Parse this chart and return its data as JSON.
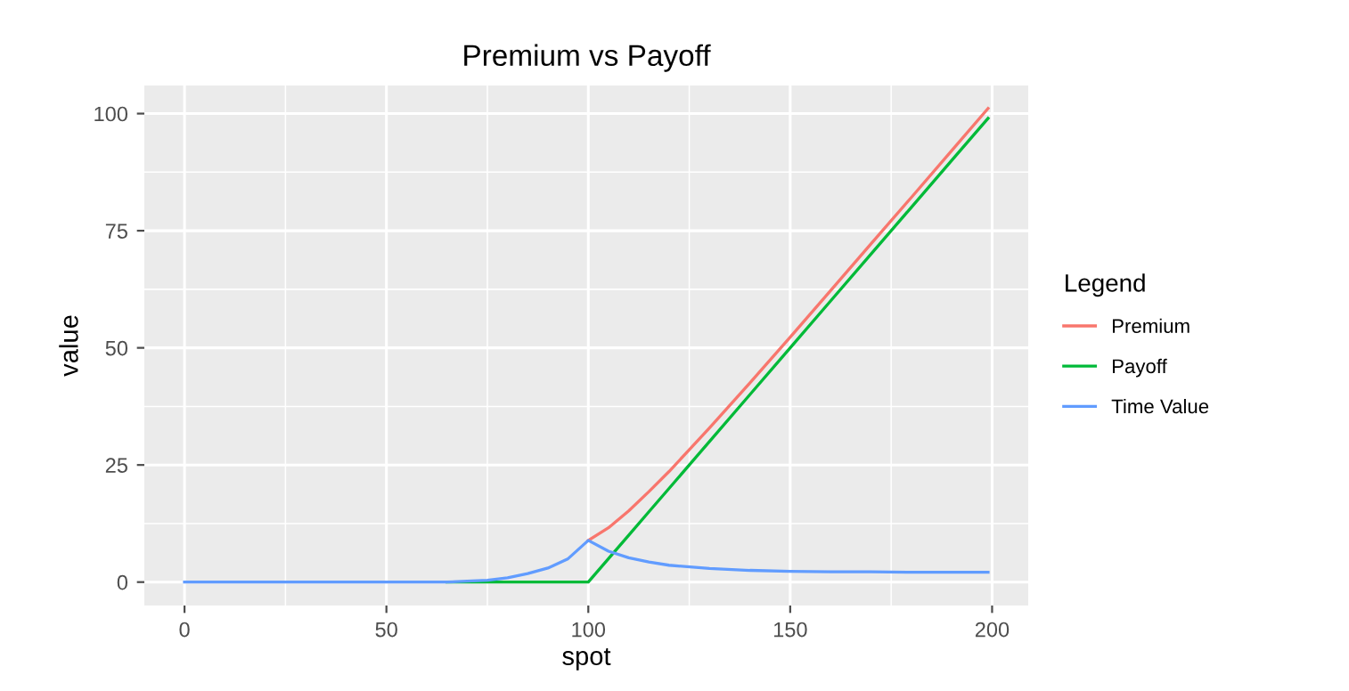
{
  "chart_data": {
    "type": "line",
    "title": "Premium vs Payoff",
    "xlabel": "spot",
    "ylabel": "value",
    "legend_title": "Legend",
    "legend": "right",
    "grid": true,
    "line_style": "solid",
    "marker": "none",
    "xlim": [
      -9.95,
      208.95
    ],
    "xticks": [
      0,
      50,
      100,
      150,
      200
    ],
    "ylim": [
      -5,
      106
    ],
    "yticks": [
      0,
      25,
      50,
      75,
      100
    ],
    "x": [
      0,
      10,
      20,
      30,
      40,
      50,
      60,
      65,
      70,
      75,
      80,
      85,
      90,
      95,
      100,
      105,
      110,
      115,
      120,
      130,
      140,
      150,
      160,
      170,
      180,
      190,
      199
    ],
    "series": [
      {
        "name": "Premium",
        "color": "#f8766d",
        "values": [
          null,
          null,
          null,
          null,
          null,
          null,
          null,
          null,
          null,
          null,
          null,
          null,
          null,
          null,
          8.9,
          11.6,
          15.2,
          19.3,
          23.6,
          32.9,
          42.5,
          52.3,
          62.2,
          72.2,
          82.1,
          92.1,
          101.1
        ]
      },
      {
        "name": "Payoff",
        "color": "#00ba38",
        "values": [
          null,
          null,
          null,
          null,
          null,
          null,
          null,
          0,
          0,
          0,
          0,
          0,
          0,
          0,
          0,
          5,
          10,
          15,
          20,
          30,
          40,
          50,
          60,
          70,
          80,
          90,
          99
        ]
      },
      {
        "name": "Time Value",
        "color": "#619cff",
        "values": [
          0,
          0,
          0,
          0,
          0,
          0,
          0,
          0,
          0.2,
          0.4,
          0.9,
          1.8,
          3.0,
          5.0,
          8.9,
          6.6,
          5.2,
          4.3,
          3.6,
          2.9,
          2.5,
          2.3,
          2.2,
          2.2,
          2.1,
          2.1,
          2.1
        ]
      }
    ]
  }
}
